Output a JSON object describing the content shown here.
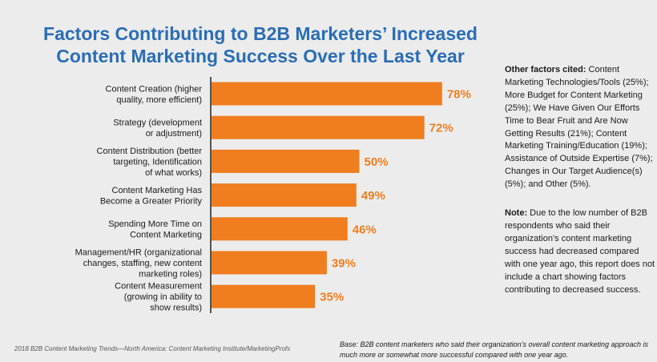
{
  "title": {
    "line1": "Factors Contributing to B2B Marketers’ Increased",
    "line2": "Content Marketing Success Over the Last Year"
  },
  "colors": {
    "bar": "#f07d1e",
    "title": "#2a6db5",
    "axis": "#222222"
  },
  "chart_data": {
    "type": "bar",
    "orientation": "horizontal",
    "categories": [
      [
        "Content Creation (higher",
        "quality, more efficient)"
      ],
      [
        "Strategy (development",
        "or adjustment)"
      ],
      [
        "Content Distribution (better",
        "targeting, Identification",
        "of what works)"
      ],
      [
        "Content Marketing Has",
        "Become a Greater Priority"
      ],
      [
        "Spending More Time on",
        "Content Marketing"
      ],
      [
        "Management/HR (organizational",
        "changes, staffing, new content",
        "marketing roles)"
      ],
      [
        "Content Measurement",
        "(growing in ability to",
        "show results)"
      ]
    ],
    "values": [
      78,
      72,
      50,
      49,
      46,
      39,
      35
    ],
    "value_labels": [
      "78%",
      "72%",
      "50%",
      "49%",
      "46%",
      "39%",
      "35%"
    ],
    "xlim": [
      0,
      100
    ],
    "grid": false
  },
  "sidebar": {
    "other_heading": "Other factors cited:",
    "other_text": " Content Marketing Technologies/Tools (25%); More Budget for Content Marketing (25%); We Have Given Our Efforts Time to Bear Fruit and Are Now Getting Results (21%); Content Marketing Training/Education (19%); Assistance of Outside Expertise (7%); Changes in Our Target Audience(s) (5%); and Other (5%).",
    "note_heading": "Note:",
    "note_text": " Due to the low number of B2B respondents who said their organization’s content marketing success had decreased compared with one year ago, this report does not include a chart showing factors contributing to decreased success."
  },
  "footer": {
    "source": "2018 B2B Content Marketing Trends—North America: Content Marketing Institute/MarketingProfs",
    "base": "Base: B2B content marketers who said their organization’s overall content marketing approach is much more or somewhat more successful compared with one year ago."
  }
}
